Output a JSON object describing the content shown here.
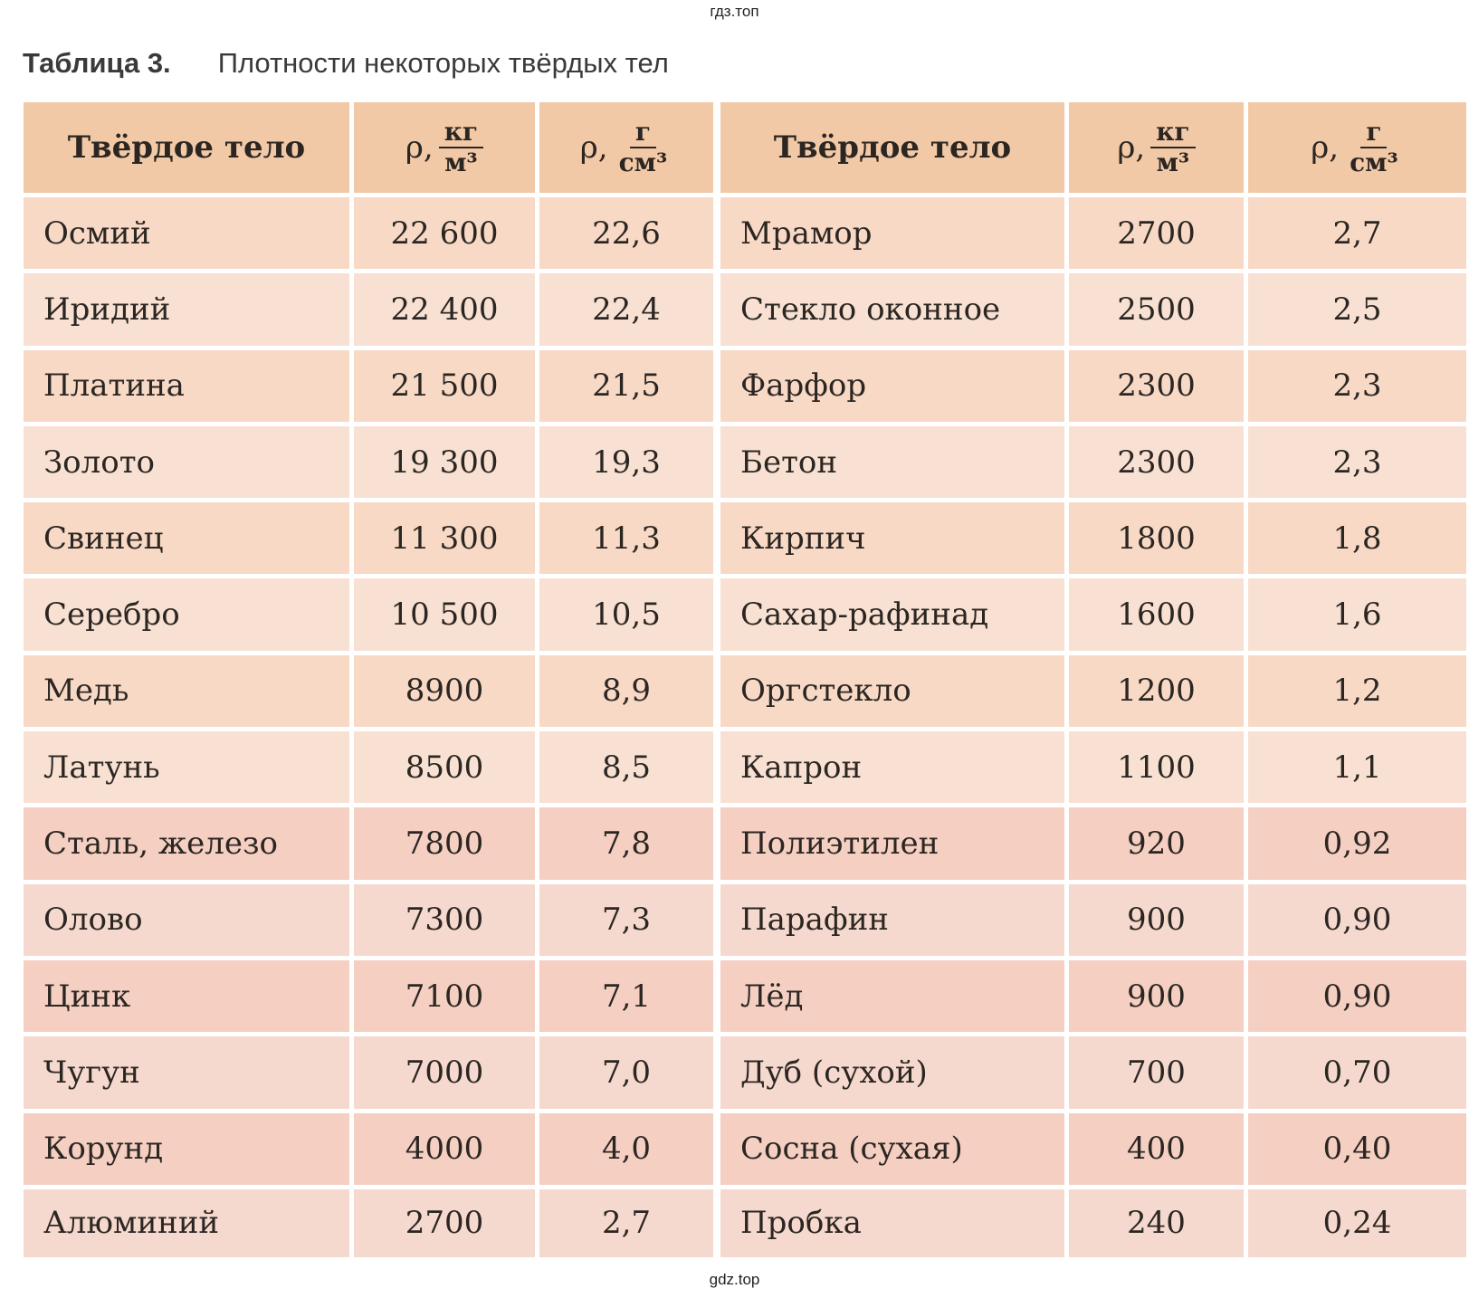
{
  "watermark_top": "гдз.топ",
  "watermark_bottom": "gdz.top",
  "caption": {
    "number": "Таблица 3.",
    "title": "Плотности некоторых твёрдых тел"
  },
  "headers": {
    "solid": "Твёрдое тело",
    "rho": "ρ,",
    "kg": "кг",
    "m3": "м³",
    "g": "г",
    "cm3": "см³"
  },
  "rows": [
    {
      "a": "Осмий",
      "a_kg": "22 600",
      "a_g": "22,6",
      "b": "Мрамор",
      "b_kg": "2700",
      "b_g": "2,7"
    },
    {
      "a": "Иридий",
      "a_kg": "22 400",
      "a_g": "22,4",
      "b": "Стекло оконное",
      "b_kg": "2500",
      "b_g": "2,5"
    },
    {
      "a": "Платина",
      "a_kg": "21 500",
      "a_g": "21,5",
      "b": "Фарфор",
      "b_kg": "2300",
      "b_g": "2,3"
    },
    {
      "a": "Золото",
      "a_kg": "19 300",
      "a_g": "19,3",
      "b": "Бетон",
      "b_kg": "2300",
      "b_g": "2,3"
    },
    {
      "a": "Свинец",
      "a_kg": "11 300",
      "a_g": "11,3",
      "b": "Кирпич",
      "b_kg": "1800",
      "b_g": "1,8"
    },
    {
      "a": "Серебро",
      "a_kg": "10 500",
      "a_g": "10,5",
      "b": "Сахар-рафинад",
      "b_kg": "1600",
      "b_g": "1,6"
    },
    {
      "a": "Медь",
      "a_kg": "8900",
      "a_g": "8,9",
      "b": "Оргстекло",
      "b_kg": "1200",
      "b_g": "1,2"
    },
    {
      "a": "Латунь",
      "a_kg": "8500",
      "a_g": "8,5",
      "b": "Капрон",
      "b_kg": "1100",
      "b_g": "1,1"
    },
    {
      "a": "Сталь, железо",
      "a_kg": "7800",
      "a_g": "7,8",
      "b": "Полиэтилен",
      "b_kg": "920",
      "b_g": "0,92"
    },
    {
      "a": "Олово",
      "a_kg": "7300",
      "a_g": "7,3",
      "b": "Парафин",
      "b_kg": "900",
      "b_g": "0,90"
    },
    {
      "a": "Цинк",
      "a_kg": "7100",
      "a_g": "7,1",
      "b": "Лёд",
      "b_kg": "900",
      "b_g": "0,90"
    },
    {
      "a": "Чугун",
      "a_kg": "7000",
      "a_g": "7,0",
      "b": "Дуб (сухой)",
      "b_kg": "700",
      "b_g": "0,70"
    },
    {
      "a": "Корунд",
      "a_kg": "4000",
      "a_g": "4,0",
      "b": "Сосна (сухая)",
      "b_kg": "400",
      "b_g": "0,40"
    },
    {
      "a": "Алюминий",
      "a_kg": "2700",
      "a_g": "2,7",
      "b": "Пробка",
      "b_kg": "240",
      "b_g": "0,24"
    }
  ]
}
